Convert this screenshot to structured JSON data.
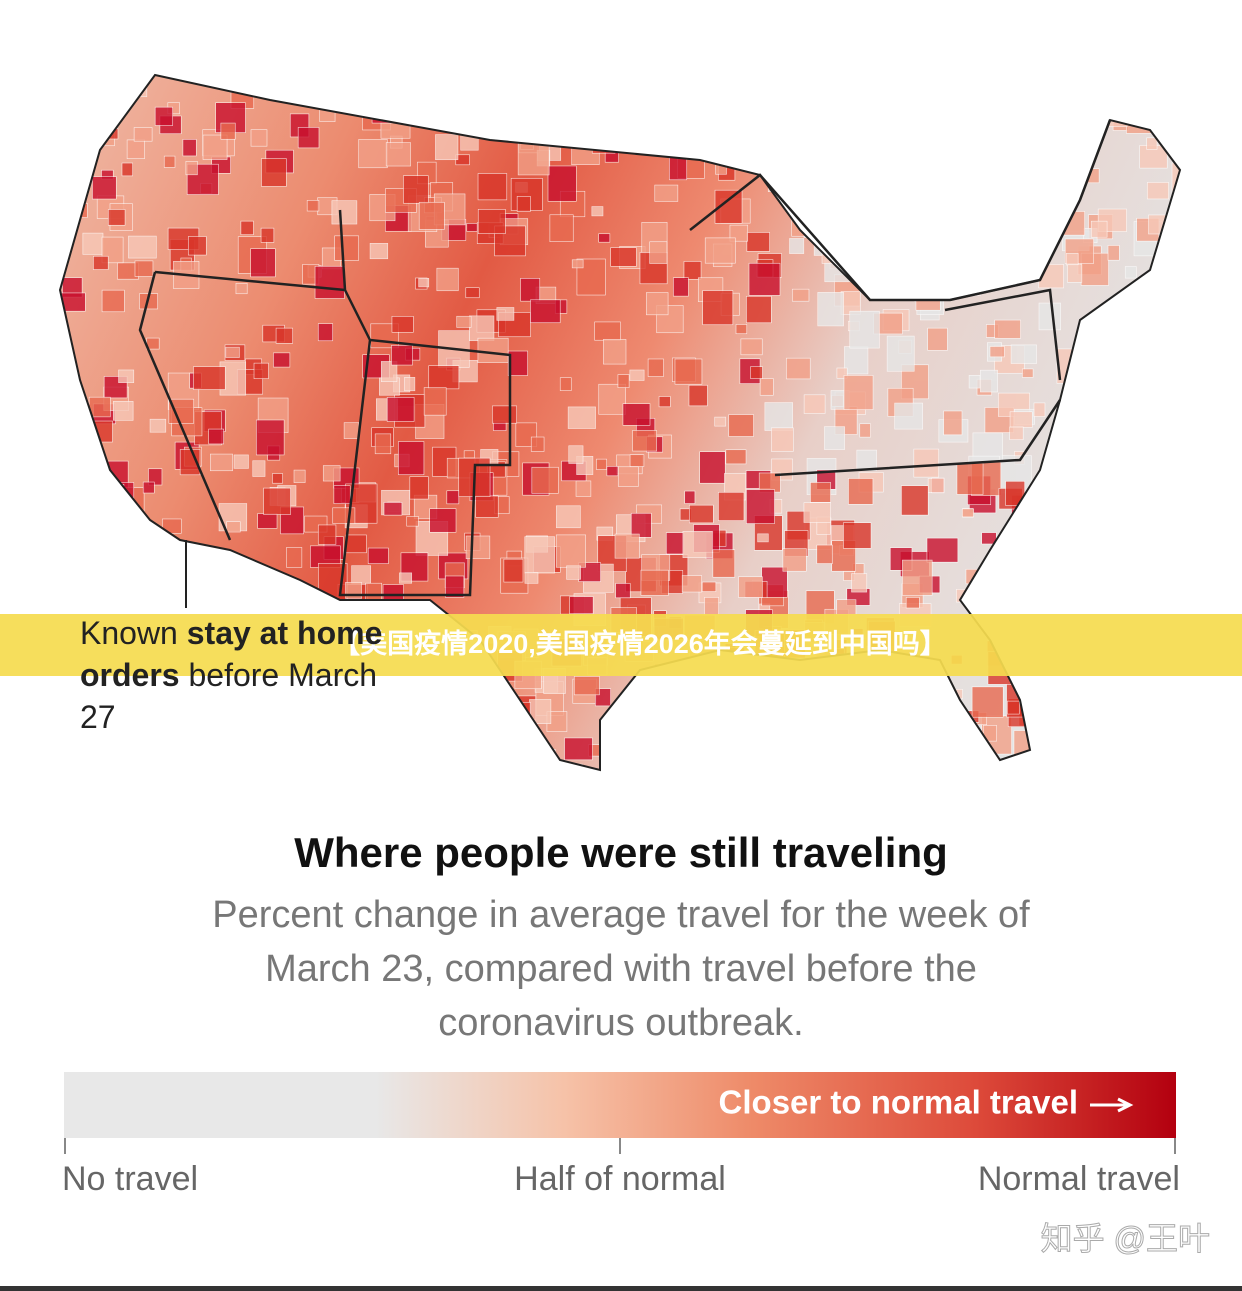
{
  "banner": "【美国疫情2020,美国疫情2026年会蔓延到中国吗】",
  "annotation": {
    "prefix": "Known",
    "bold": "stay at home orders",
    "suffix": "before March 27"
  },
  "title": "Where people were still traveling",
  "subtitle": [
    "Percent change in average travel for the week of",
    "March 23, compared with travel before the",
    "coronavirus outbreak."
  ],
  "legend": {
    "bar_label": "Closer to normal travel",
    "ticks": [
      "No travel",
      "Half of normal",
      "Normal travel"
    ]
  },
  "watermark": "知乎 @王叶"
}
